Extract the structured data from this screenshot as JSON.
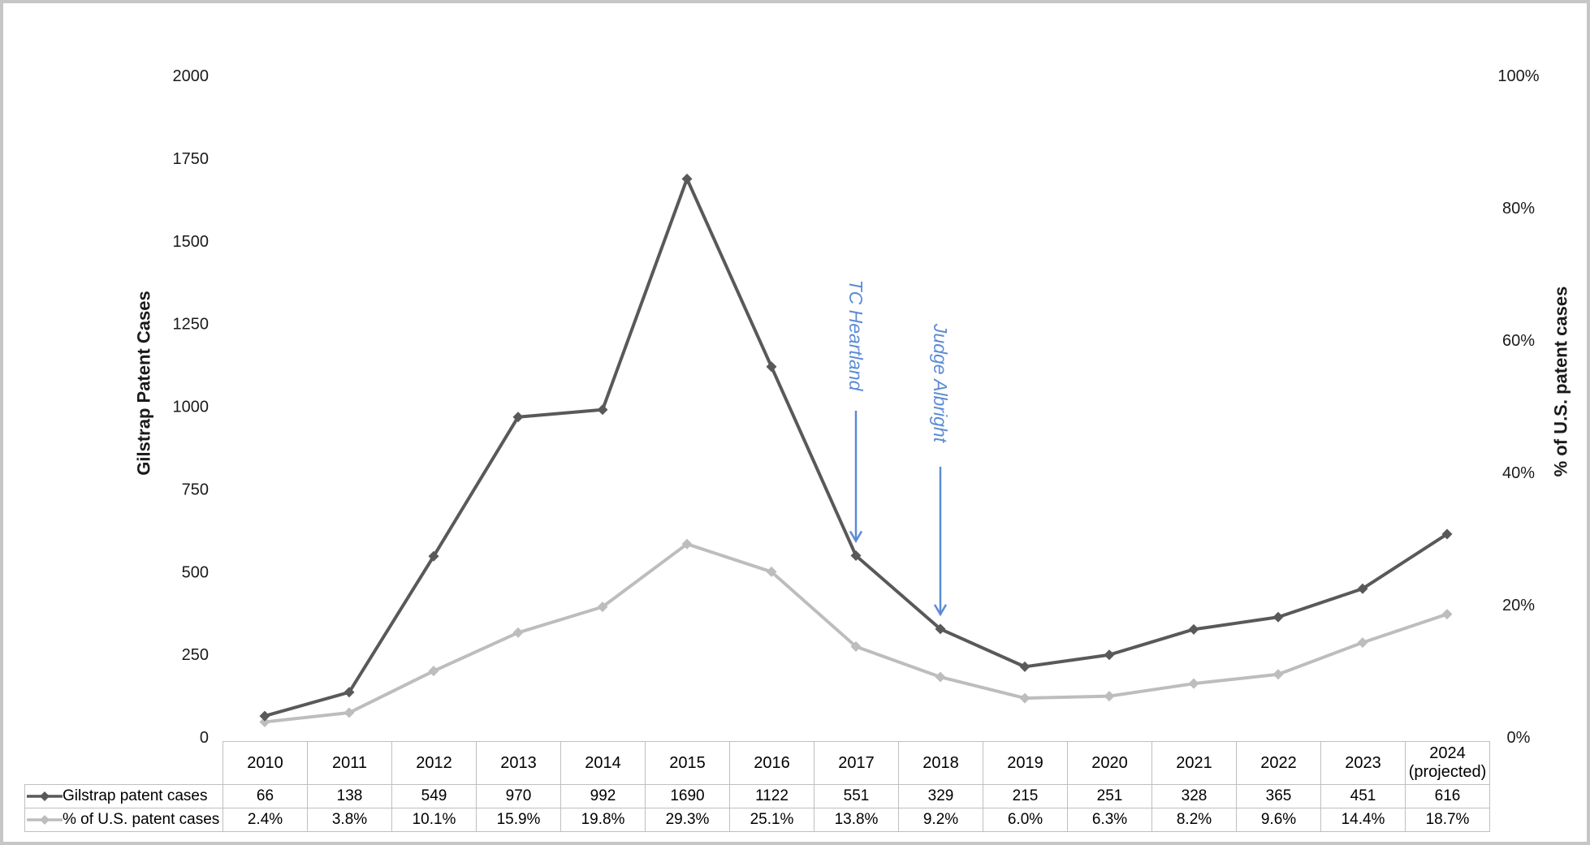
{
  "chart_data": {
    "type": "line",
    "title": "",
    "categories": [
      "2010",
      "2011",
      "2012",
      "2013",
      "2014",
      "2015",
      "2016",
      "2017",
      "2018",
      "2019",
      "2020",
      "2021",
      "2022",
      "2023",
      "2024 (projected)"
    ],
    "series": [
      {
        "name": "Gilstrap patent cases",
        "axis": "left",
        "color": "#595959",
        "marker": "diamond",
        "values": [
          66,
          138,
          549,
          970,
          992,
          1690,
          1122,
          551,
          329,
          215,
          251,
          328,
          365,
          451,
          616
        ],
        "display": [
          "66",
          "138",
          "549",
          "970",
          "992",
          "1690",
          "1122",
          "551",
          "329",
          "215",
          "251",
          "328",
          "365",
          "451",
          "616"
        ]
      },
      {
        "name": "% of U.S. patent cases",
        "axis": "right",
        "color": "#bdbdbd",
        "marker": "diamond",
        "values": [
          2.4,
          3.8,
          10.1,
          15.9,
          19.8,
          29.3,
          25.1,
          13.8,
          9.2,
          6.0,
          6.3,
          8.2,
          9.6,
          14.4,
          18.7
        ],
        "display": [
          "2.4%",
          "3.8%",
          "10.1%",
          "15.9%",
          "19.8%",
          "29.3%",
          "25.1%",
          "13.8%",
          "9.2%",
          "6.0%",
          "6.3%",
          "8.2%",
          "9.6%",
          "14.4%",
          "18.7%"
        ]
      }
    ],
    "left_axis": {
      "title": "Gilstrap Patent Cases",
      "min": 0,
      "max": 2000,
      "ticks": [
        "2000",
        "1750",
        "1500",
        "1250",
        "1000",
        "750",
        "500",
        "250",
        "0"
      ]
    },
    "right_axis": {
      "title": "% of U.S. patent cases",
      "min": 0,
      "max": 100,
      "ticks": [
        "100%",
        "80%",
        "60%",
        "40%",
        "20%",
        "0%"
      ]
    },
    "annotations": [
      {
        "label": "TC Heartland",
        "target_category": "2017",
        "color": "#5B8BD5"
      },
      {
        "label": "Judge Albright",
        "target_category": "2018",
        "color": "#5B8BD5"
      }
    ],
    "grid": false,
    "legend_position": "table-left",
    "text_color": "#1a1a1a",
    "table_border_color": "#bfbfbf"
  }
}
